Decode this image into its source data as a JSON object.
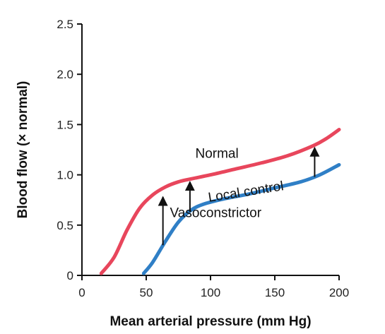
{
  "chart_data": {
    "type": "line",
    "xlabel": "Mean arterial pressure (mm Hg)",
    "ylabel": "Blood flow (× normal)",
    "xlim": [
      0,
      200
    ],
    "ylim": [
      0,
      2.5
    ],
    "x_ticks": [
      0,
      50,
      100,
      150,
      200
    ],
    "y_ticks": [
      0,
      0.5,
      1.0,
      1.5,
      2.0,
      2.5
    ],
    "x_tick_labels": [
      "0",
      "50",
      "100",
      "150",
      "200"
    ],
    "y_tick_labels": [
      "0",
      "0.5",
      "1.0",
      "1.5",
      "2.0",
      "2.5"
    ],
    "grid": false,
    "legend": "none",
    "series": [
      {
        "name": "Normal",
        "color": "#e8465c",
        "x": [
          15,
          25,
          35,
          45,
          55,
          65,
          75,
          85,
          100,
          120,
          140,
          160,
          180,
          190,
          200
        ],
        "y": [
          0.02,
          0.18,
          0.45,
          0.67,
          0.8,
          0.88,
          0.93,
          0.96,
          1.0,
          1.06,
          1.12,
          1.19,
          1.29,
          1.36,
          1.45
        ]
      },
      {
        "name": "Vasoconstrictor",
        "color": "#2f7fc6",
        "x": [
          48,
          55,
          65,
          75,
          85,
          95,
          110,
          130,
          150,
          170,
          185,
          200
        ],
        "y": [
          0.02,
          0.13,
          0.34,
          0.53,
          0.65,
          0.71,
          0.76,
          0.81,
          0.87,
          0.93,
          1.0,
          1.1
        ]
      }
    ],
    "annotations": [
      {
        "text": "Normal",
        "x": 105,
        "y": 1.17,
        "rotate": 0
      },
      {
        "text": "Local control",
        "x": 128,
        "y": 0.79,
        "rotate": -9
      },
      {
        "text": "Vasoconstrictor",
        "x": 104,
        "y": 0.58,
        "rotate": 0
      }
    ],
    "arrows": [
      {
        "x": 63,
        "y_from": 0.3,
        "y_to": 0.78
      },
      {
        "x": 84,
        "y_from": 0.63,
        "y_to": 0.93
      },
      {
        "x": 181,
        "y_from": 0.98,
        "y_to": 1.27
      }
    ]
  }
}
